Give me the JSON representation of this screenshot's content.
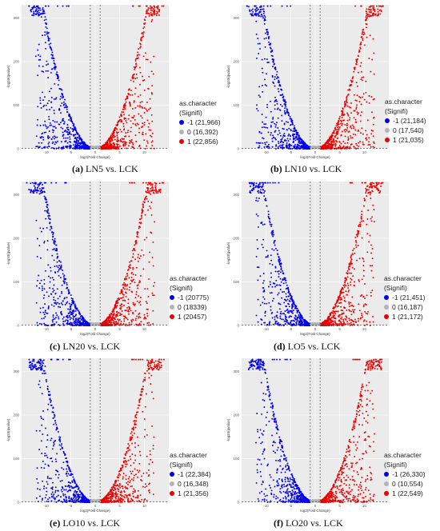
{
  "colors": {
    "down": "#0000ee",
    "none": "#b3b3b3",
    "up": "#ee0000",
    "panel_bg": "#ebebeb",
    "grid": "#ffffff"
  },
  "legend": {
    "title": "as.character",
    "subtitle": "(Signifi)"
  },
  "axis": {
    "xlabel": "log2(Fold Change)",
    "ylabel": "-log10(qvalue)"
  },
  "panels": [
    {
      "id": "a",
      "caption_label": "(a)",
      "caption_text": "LN5 vs. LCK",
      "legend_items": [
        "-1 (21,966)",
        "0 (16,392)",
        "1 (22,856)"
      ]
    },
    {
      "id": "b",
      "caption_label": "(b)",
      "caption_text": "LN10 vs. LCK",
      "legend_items": [
        "-1 (21,184)",
        "0 (17,540)",
        "1 (21,035)"
      ]
    },
    {
      "id": "c",
      "caption_label": "(c)",
      "caption_text": "LN20 vs. LCK",
      "legend_items": [
        "-1 (20775)",
        "0 (18339)",
        "1 (20457)"
      ]
    },
    {
      "id": "d",
      "caption_label": "(d)",
      "caption_text": "LO5 vs. LCK",
      "legend_items": [
        "-1 (21,451)",
        "0 (16,187)",
        "1 (21,172)"
      ]
    },
    {
      "id": "e",
      "caption_label": "(e)",
      "caption_text": "LO10 vs. LCK",
      "legend_items": [
        "-1 (22,384)",
        "0 (16,348)",
        "1 (21,356)"
      ]
    },
    {
      "id": "f",
      "caption_label": "(f)",
      "caption_text": "LO20 vs. LCK",
      "legend_items": [
        "-1 (26,330)",
        "0 (10,554)",
        "1 (22,549)"
      ]
    }
  ],
  "chart_data": [
    {
      "type": "scatter",
      "panel": "a",
      "xlim": [
        -15,
        15
      ],
      "ylim": [
        0,
        330
      ],
      "x_ticks": [
        -10,
        -5,
        0,
        5,
        10
      ],
      "y_ticks": [
        0,
        100,
        200,
        300
      ],
      "xlabel": "log2(Fold Change)",
      "ylabel": "-log10(qvalue)",
      "grid": true,
      "legend_position": "right",
      "thresholds": {
        "x": [
          -1,
          1
        ],
        "y": 1.3
      },
      "series": [
        {
          "name": "-1",
          "count": 21966
        },
        {
          "name": "0",
          "count": 16392
        },
        {
          "name": "1",
          "count": 22856
        }
      ]
    },
    {
      "type": "scatter",
      "panel": "b",
      "xlim": [
        -15,
        15
      ],
      "ylim": [
        0,
        330
      ],
      "x_ticks": [
        -10,
        -5,
        0,
        5,
        10
      ],
      "y_ticks": [
        0,
        100,
        200,
        300
      ],
      "xlabel": "log2(Fold Change)",
      "ylabel": "-log10(qvalue)",
      "grid": true,
      "legend_position": "right",
      "thresholds": {
        "x": [
          -1,
          1
        ],
        "y": 1.3
      },
      "series": [
        {
          "name": "-1",
          "count": 21184
        },
        {
          "name": "0",
          "count": 17540
        },
        {
          "name": "1",
          "count": 21035
        }
      ]
    },
    {
      "type": "scatter",
      "panel": "c",
      "xlim": [
        -15,
        15
      ],
      "ylim": [
        0,
        330
      ],
      "x_ticks": [
        -10,
        -5,
        0,
        5,
        10
      ],
      "y_ticks": [
        0,
        100,
        200,
        300
      ],
      "xlabel": "log2(Fold Change)",
      "ylabel": "-log10(qvalue)",
      "grid": true,
      "legend_position": "right",
      "thresholds": {
        "x": [
          -1,
          1
        ],
        "y": 1.3
      },
      "series": [
        {
          "name": "-1",
          "count": 20775
        },
        {
          "name": "0",
          "count": 18339
        },
        {
          "name": "1",
          "count": 20457
        }
      ]
    },
    {
      "type": "scatter",
      "panel": "d",
      "xlim": [
        -15,
        15
      ],
      "ylim": [
        0,
        330
      ],
      "x_ticks": [
        -10,
        -5,
        0,
        5,
        10
      ],
      "y_ticks": [
        0,
        100,
        200,
        300
      ],
      "xlabel": "log2(Fold Change)",
      "ylabel": "-log10(qvalue)",
      "grid": true,
      "legend_position": "right",
      "thresholds": {
        "x": [
          -1,
          1
        ],
        "y": 1.3
      },
      "series": [
        {
          "name": "-1",
          "count": 21451
        },
        {
          "name": "0",
          "count": 16187
        },
        {
          "name": "1",
          "count": 21172
        }
      ]
    },
    {
      "type": "scatter",
      "panel": "e",
      "xlim": [
        -15,
        15
      ],
      "ylim": [
        0,
        330
      ],
      "x_ticks": [
        -10,
        -5,
        0,
        5,
        10
      ],
      "y_ticks": [
        0,
        100,
        200,
        300
      ],
      "xlabel": "log2(Fold Change)",
      "ylabel": "-log10(qvalue)",
      "grid": true,
      "legend_position": "right",
      "thresholds": {
        "x": [
          -1,
          1
        ],
        "y": 1.3
      },
      "series": [
        {
          "name": "-1",
          "count": 22384
        },
        {
          "name": "0",
          "count": 16348
        },
        {
          "name": "1",
          "count": 21356
        }
      ]
    },
    {
      "type": "scatter",
      "panel": "f",
      "xlim": [
        -15,
        15
      ],
      "ylim": [
        0,
        330
      ],
      "x_ticks": [
        -10,
        -5,
        0,
        5,
        10
      ],
      "y_ticks": [
        0,
        100,
        200,
        300
      ],
      "xlabel": "log2(Fold Change)",
      "ylabel": "-log10(qvalue)",
      "grid": true,
      "legend_position": "right",
      "thresholds": {
        "x": [
          -1,
          1
        ],
        "y": 1.3
      },
      "series": [
        {
          "name": "-1",
          "count": 26330
        },
        {
          "name": "0",
          "count": 10554
        },
        {
          "name": "1",
          "count": 22549
        }
      ]
    }
  ]
}
